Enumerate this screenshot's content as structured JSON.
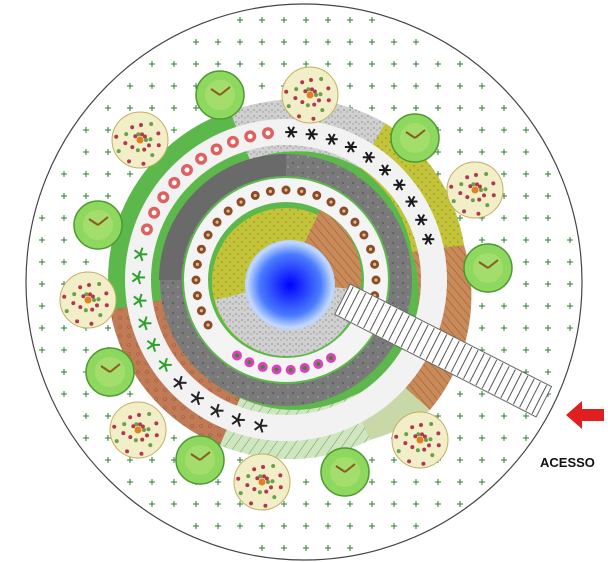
{
  "plan": {
    "access_label": "ACESSO",
    "colors": {
      "outer_lawn": "#ffffff",
      "cross_mark": "#2e7d32",
      "outer_ring": "#5cb84a",
      "outer_ring_gravel": "#c8c8c8",
      "outer_ring_yellow": "#c8c840",
      "outer_ring_terracotta": "#c07858",
      "outer_ring_hatch": "#b8d8a8",
      "flower_ring_red": "#e06060",
      "dark_ring": "#7a7a7a",
      "fern_green": "#3aa03a",
      "plum_flower_ring": "#8b4a2a",
      "pink_flower": "#e040c0",
      "inner_yellow": "#b8b830",
      "inner_terracotta": "#b87040",
      "pond_center": "#0000ff",
      "pond_edge": "#c8e0ff",
      "path_wood": "#b0b0b0",
      "tree_green": "#7cc84c",
      "flower_tree": "#b03850",
      "arrow_red": "#e02020"
    }
  }
}
